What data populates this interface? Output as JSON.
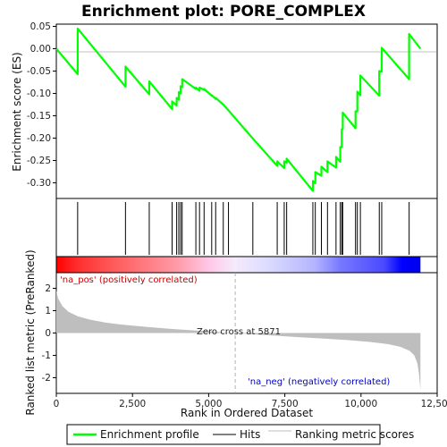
{
  "chart_data": {
    "type": "line",
    "title": "Enrichment plot: PORE_COMPLEX",
    "xlabel": "Rank in Ordered Dataset",
    "ylabel_top": "Enrichment score (ES)",
    "ylabel_bottom": "Ranked list metric (PreRanked)",
    "xlim": [
      0,
      12500
    ],
    "x_ticks": [
      0,
      2500,
      5000,
      7500,
      10000,
      12500
    ],
    "x_tick_labels": [
      "0",
      "2,500",
      "5,000",
      "7,500",
      "10,000",
      "12,500"
    ],
    "es_ylim": [
      -0.335,
      0.055
    ],
    "es_ticks": [
      0.05,
      0.0,
      -0.05,
      -0.1,
      -0.15,
      -0.2,
      -0.25,
      -0.3
    ],
    "es_tick_labels": [
      "0.05",
      "0.00",
      "-0.05",
      "-0.10",
      "-0.15",
      "-0.20",
      "-0.25",
      "-0.30"
    ],
    "metric_ylim": [
      -2.7,
      2.7
    ],
    "metric_ticks": [
      2,
      1,
      0,
      -1,
      -2
    ],
    "metric_tick_labels": [
      "2",
      "1",
      "0",
      "-1",
      "-2"
    ],
    "n_genes": 11950,
    "zero_cross": 5871,
    "zero_cross_label": "Zero cross at 5871",
    "pos_label": "'na_pos' (positively correlated)",
    "neg_label": "'na_neg' (negatively correlated)",
    "hits": [
      700,
      2270,
      3050,
      3800,
      3950,
      4020,
      4080,
      4130,
      4580,
      4700,
      4850,
      5100,
      5230,
      5480,
      5650,
      6450,
      7250,
      7480,
      7560,
      8420,
      8500,
      8700,
      8900,
      9180,
      9320,
      9370,
      9400,
      9820,
      9880,
      9980,
      10600,
      10680,
      11580
    ],
    "es_curve_x": [
      0,
      700,
      700,
      2270,
      2270,
      3050,
      3050,
      3800,
      3800,
      3950,
      3950,
      4020,
      4020,
      4080,
      4080,
      4130,
      4130,
      4580,
      4580,
      4700,
      4700,
      4850,
      4850,
      5100,
      5100,
      5230,
      5230,
      5480,
      5480,
      5650,
      5650,
      6450,
      6450,
      7250,
      7250,
      7480,
      7480,
      7560,
      7560,
      8420,
      8420,
      8500,
      8500,
      8700,
      8700,
      8900,
      8900,
      9180,
      9180,
      9320,
      9320,
      9370,
      9370,
      9400,
      9400,
      9820,
      9820,
      9880,
      9880,
      9980,
      9980,
      10600,
      10600,
      10680,
      10680,
      11580,
      11580,
      11950
    ],
    "es_curve_y": [
      0.0,
      -0.057,
      0.045,
      -0.085,
      -0.04,
      -0.102,
      -0.073,
      -0.135,
      -0.118,
      -0.127,
      -0.11,
      -0.114,
      -0.097,
      -0.1,
      -0.084,
      -0.086,
      -0.068,
      -0.09,
      -0.087,
      -0.094,
      -0.087,
      -0.092,
      -0.09,
      -0.105,
      -0.104,
      -0.112,
      -0.11,
      -0.125,
      -0.125,
      -0.138,
      -0.138,
      -0.201,
      -0.201,
      -0.262,
      -0.252,
      -0.267,
      -0.252,
      -0.255,
      -0.246,
      -0.318,
      -0.296,
      -0.301,
      -0.276,
      -0.284,
      -0.264,
      -0.276,
      -0.252,
      -0.266,
      -0.242,
      -0.253,
      -0.22,
      -0.22,
      -0.18,
      -0.18,
      -0.143,
      -0.178,
      -0.14,
      -0.14,
      -0.096,
      -0.104,
      -0.06,
      -0.105,
      -0.05,
      -0.051,
      0.002,
      -0.068,
      0.033,
      0.0
    ],
    "metric_curve_x": [
      0,
      60,
      200,
      400,
      700,
      1100,
      1600,
      2200,
      3000,
      3800,
      4600,
      5300,
      5871,
      6500,
      7200,
      8000,
      8800,
      9600,
      10300,
      10900,
      11300,
      11600,
      11750,
      11850,
      11900,
      11950
    ],
    "metric_curve_y": [
      1.9,
      1.55,
      1.2,
      0.95,
      0.75,
      0.6,
      0.47,
      0.37,
      0.27,
      0.18,
      0.11,
      0.05,
      0.0,
      -0.06,
      -0.12,
      -0.19,
      -0.25,
      -0.32,
      -0.4,
      -0.5,
      -0.62,
      -0.8,
      -1.0,
      -1.35,
      -1.8,
      -2.55
    ],
    "colors": {
      "es_line": "#00ff00",
      "hit": "#000000",
      "metric_fill": "#bebebe",
      "zero_line": "#a0a0a0",
      "pos_text": "#cc0000",
      "neg_text": "#0000cc",
      "bar_red": "#ff0000",
      "bar_blue": "#0000ff"
    },
    "legend": [
      {
        "label": "Enrichment profile",
        "kind": "es_line"
      },
      {
        "label": "Hits",
        "kind": "hit"
      },
      {
        "label": "Ranking metric scores",
        "kind": "metric"
      }
    ]
  }
}
